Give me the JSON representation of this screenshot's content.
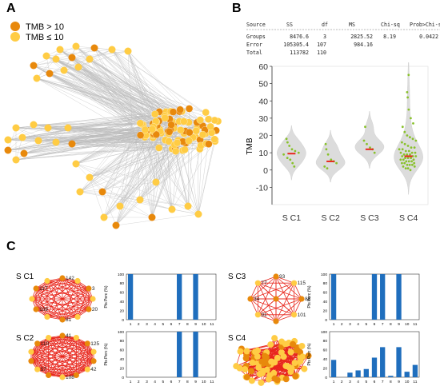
{
  "panels": {
    "a": "A",
    "b": "B",
    "c": "C"
  },
  "legend": [
    {
      "label": "TMB > 10",
      "color": "#E8890C"
    },
    {
      "label": "TMB ≤ 10",
      "color": "#FFCC44"
    }
  ],
  "anova": {
    "headers": [
      "Source",
      "SS",
      "df",
      "MS",
      "Chi-sq",
      "Prob>Chi-sq"
    ],
    "rows": [
      [
        "Groups",
        "8476.6",
        "3",
        "2825.52",
        "8.19",
        "0.0422"
      ],
      [
        "Error",
        "105305.4",
        "107",
        "984.16",
        "",
        ""
      ],
      [
        "Total",
        "113782",
        "110",
        "",
        "",
        ""
      ]
    ]
  },
  "chart_data": [
    {
      "type": "violin",
      "ylabel": "TMB",
      "ylim": [
        -20,
        60
      ],
      "yticks": [
        "60",
        "50",
        "40",
        "30",
        "20",
        "10",
        "0",
        "-10"
      ],
      "categories": [
        "S C1",
        "S C2",
        "S C3",
        "S C4"
      ],
      "medians": [
        9.5,
        5,
        12,
        8
      ],
      "series": [
        {
          "name": "S C1",
          "points": [
            18,
            16,
            14,
            12,
            11,
            10,
            9,
            7,
            6,
            4,
            2
          ]
        },
        {
          "name": "S C2",
          "points": [
            15,
            12,
            9,
            6,
            5,
            4,
            2,
            1
          ]
        },
        {
          "name": "S C3",
          "points": [
            25,
            17,
            15,
            13,
            12,
            10
          ]
        },
        {
          "name": "S C4",
          "points": [
            55,
            45,
            42,
            35,
            30,
            27,
            25,
            22,
            20,
            19,
            18,
            17,
            16,
            15,
            14,
            13,
            13,
            12,
            12,
            11,
            11,
            10,
            10,
            10,
            9,
            9,
            9,
            8,
            8,
            8,
            7,
            7,
            7,
            6,
            6,
            6,
            5,
            5,
            5,
            4,
            4,
            4,
            3,
            3,
            3,
            2,
            2,
            1,
            1,
            0
          ]
        }
      ]
    },
    {
      "type": "bar",
      "ylabel": "Pts Perc (%)",
      "categories": [
        "1",
        "2",
        "3",
        "4",
        "5",
        "6",
        "7",
        "8",
        "9",
        "10",
        "11"
      ],
      "ylim": [
        0,
        100
      ],
      "yticks": [
        "100",
        "80",
        "60",
        "40",
        "20",
        "0"
      ],
      "series": [
        {
          "name": "S C1",
          "values": [
            100,
            0,
            0,
            0,
            0,
            0,
            100,
            0,
            100,
            0,
            0
          ]
        },
        {
          "name": "S C2",
          "values": [
            0,
            0,
            0,
            0,
            0,
            0,
            100,
            0,
            100,
            0,
            0
          ]
        },
        {
          "name": "S C3",
          "values": [
            100,
            0,
            0,
            0,
            0,
            100,
            100,
            0,
            100,
            0,
            0
          ]
        },
        {
          "name": "S C4",
          "values": [
            38,
            0,
            10,
            15,
            18,
            43,
            66,
            3,
            66,
            12,
            27
          ]
        }
      ]
    }
  ],
  "networks": [
    {
      "name": "S C1",
      "labels": [
        "142",
        "3",
        "20",
        "81",
        "109",
        "117"
      ]
    },
    {
      "name": "S C2",
      "labels": [
        "41",
        "125",
        "42",
        "108",
        "57",
        "110"
      ]
    },
    {
      "name": "S C3",
      "labels": [
        "93",
        "115",
        "88",
        "101",
        "91",
        "34",
        "77"
      ]
    },
    {
      "name": "S C4",
      "labels": []
    }
  ]
}
